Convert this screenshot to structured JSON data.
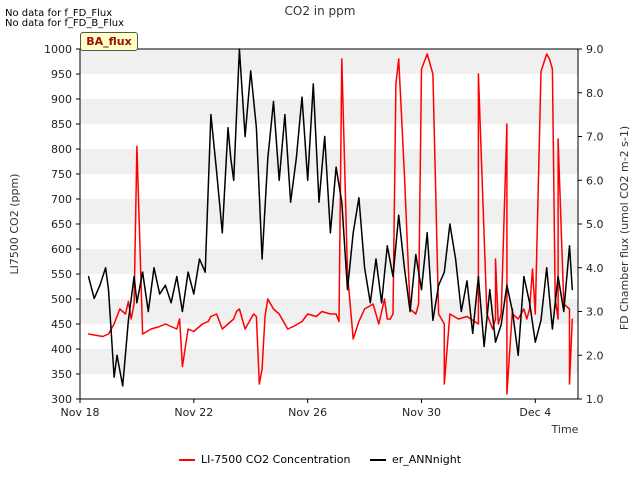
{
  "chart_data": {
    "type": "line",
    "title": "CO2 in ppm",
    "xlabel": "Time",
    "ylabel": "LI7500 CO2 (ppm)",
    "y2label": "FD Chamber flux (umol CO2 m-2 s-1)",
    "ylim": [
      300,
      1000
    ],
    "y2lim": [
      1.0,
      9.0
    ],
    "xlim": [
      0,
      17.5
    ],
    "x_ticks": [
      {
        "x": 0,
        "label": "Nov 18"
      },
      {
        "x": 4,
        "label": "Nov 22"
      },
      {
        "x": 8,
        "label": "Nov 26"
      },
      {
        "x": 12,
        "label": "Nov 30"
      },
      {
        "x": 16,
        "label": "Dec 4"
      }
    ],
    "y_ticks": [
      300,
      350,
      400,
      450,
      500,
      550,
      600,
      650,
      700,
      750,
      800,
      850,
      900,
      950,
      1000
    ],
    "y2_ticks": [
      1.0,
      2.0,
      3.0,
      4.0,
      5.0,
      6.0,
      7.0,
      8.0,
      9.0
    ],
    "notes": [
      "No data for f_FD_Flux",
      "No data for f_FD_B_Flux"
    ],
    "badge": "BA_flux",
    "series": [
      {
        "name": "LI-7500 CO2 Concentration",
        "color": "#ff0000",
        "axis": "left",
        "x": [
          0.3,
          0.8,
          1.0,
          1.2,
          1.4,
          1.6,
          1.7,
          1.8,
          1.9,
          2.0,
          2.2,
          2.5,
          2.8,
          3.0,
          3.2,
          3.4,
          3.5,
          3.6,
          3.8,
          4.0,
          4.3,
          4.5,
          4.6,
          4.8,
          5.0,
          5.2,
          5.4,
          5.5,
          5.6,
          5.8,
          6.0,
          6.1,
          6.2,
          6.3,
          6.4,
          6.5,
          6.6,
          6.8,
          7.0,
          7.3,
          7.5,
          7.8,
          8.0,
          8.3,
          8.5,
          8.8,
          9.0,
          9.1,
          9.2,
          9.4,
          9.6,
          9.8,
          10.0,
          10.3,
          10.5,
          10.7,
          10.8,
          10.9,
          11.0,
          11.1,
          11.2,
          11.4,
          11.6,
          11.8,
          11.9,
          12.0,
          12.2,
          12.4,
          12.6,
          12.8,
          13.0,
          13.3,
          13.6,
          14.0,
          14.3,
          14.5,
          14.6,
          14.7,
          14.8,
          15.0,
          15.2,
          15.4,
          15.6,
          15.7,
          15.8,
          15.9,
          16.0,
          16.2,
          16.4,
          16.5,
          16.6,
          16.7,
          16.8,
          17.0,
          17.2,
          17.3
        ],
        "values": [
          430,
          425,
          430,
          450,
          480,
          470,
          495,
          460,
          490,
          805,
          430,
          440,
          445,
          450,
          445,
          440,
          460,
          365,
          440,
          435,
          450,
          455,
          465,
          470,
          440,
          450,
          460,
          475,
          480,
          440,
          460,
          470,
          465,
          330,
          360,
          465,
          500,
          480,
          470,
          440,
          445,
          455,
          470,
          465,
          475,
          470,
          470,
          455,
          980,
          550,
          420,
          455,
          480,
          490,
          450,
          500,
          460,
          460,
          470,
          930,
          980,
          750,
          480,
          470,
          490,
          960,
          990,
          950,
          470,
          450,
          470,
          460,
          465,
          450,
          470,
          440,
          460,
          450,
          470,
          850,
          480,
          460,
          480,
          460,
          480,
          560,
          470,
          955,
          990,
          980,
          960,
          500,
          460,
          490,
          480,
          460
        ],
        "x_extra_note": "",
        "spike_x": [
          12.8,
          14.0,
          14.6,
          15.0,
          15.2,
          16.8,
          17.2
        ],
        "spike_values": [
          330,
          950,
          580,
          310,
          470,
          820,
          330
        ]
      },
      {
        "name": "er_ANNnight",
        "color": "#000000",
        "axis": "right",
        "x": [
          0.3,
          0.5,
          0.7,
          0.9,
          1.0,
          1.1,
          1.2,
          1.3,
          1.5,
          1.7,
          1.9,
          2.0,
          2.2,
          2.4,
          2.6,
          2.8,
          3.0,
          3.2,
          3.4,
          3.6,
          3.8,
          4.0,
          4.2,
          4.4,
          4.6,
          4.8,
          5.0,
          5.2,
          5.3,
          5.4,
          5.6,
          5.8,
          6.0,
          6.2,
          6.4,
          6.6,
          6.8,
          7.0,
          7.2,
          7.4,
          7.6,
          7.8,
          8.0,
          8.2,
          8.4,
          8.6,
          8.8,
          9.0,
          9.2,
          9.4,
          9.6,
          9.8,
          10.0,
          10.2,
          10.4,
          10.6,
          10.8,
          11.0,
          11.2,
          11.4,
          11.6,
          11.8,
          12.0,
          12.2,
          12.4,
          12.6,
          12.8,
          13.0,
          13.2,
          13.4,
          13.6,
          13.8,
          14.0,
          14.2,
          14.4,
          14.6,
          14.8,
          15.0,
          15.2,
          15.4,
          15.6,
          15.8,
          16.0,
          16.2,
          16.4,
          16.6,
          16.8,
          17.0,
          17.2,
          17.3
        ],
        "values": [
          3.8,
          3.3,
          3.6,
          4.0,
          3.5,
          2.5,
          1.5,
          2.0,
          1.3,
          2.8,
          3.8,
          3.2,
          3.9,
          3.0,
          4.0,
          3.4,
          3.6,
          3.2,
          3.8,
          3.0,
          3.9,
          3.4,
          4.2,
          3.9,
          7.5,
          6.2,
          4.8,
          7.2,
          6.5,
          6.0,
          9.0,
          7.0,
          8.5,
          7.2,
          4.2,
          6.5,
          7.8,
          6.0,
          7.5,
          5.5,
          6.5,
          7.9,
          6.0,
          8.2,
          5.5,
          7.0,
          4.8,
          6.3,
          5.5,
          3.5,
          4.8,
          5.6,
          4.0,
          3.2,
          4.2,
          3.2,
          4.5,
          3.8,
          5.2,
          4.0,
          3.0,
          4.3,
          3.5,
          4.8,
          2.8,
          3.6,
          3.9,
          5.0,
          4.2,
          3.0,
          3.7,
          2.5,
          3.8,
          2.2,
          3.5,
          2.3,
          2.7,
          3.6,
          3.0,
          2.0,
          3.8,
          3.2,
          2.3,
          2.8,
          4.0,
          2.6,
          3.8,
          3.0,
          4.5,
          3.5
        ]
      }
    ]
  }
}
